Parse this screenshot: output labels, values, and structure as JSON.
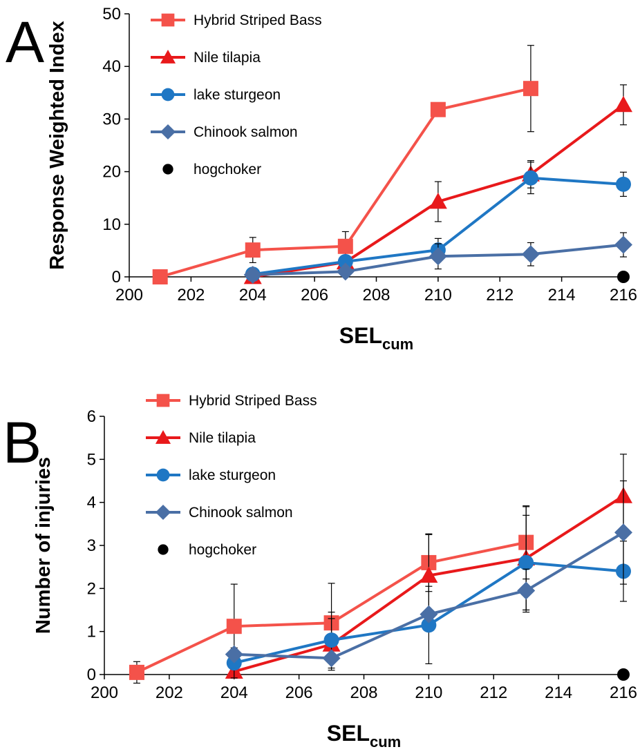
{
  "colors": {
    "hybrid": "#F4524A",
    "tilapia": "#E8191B",
    "sturgeon": "#1F77C4",
    "chinook": "#4A6FA5",
    "hogchoker": "#000000"
  },
  "chart_data": [
    {
      "type": "line",
      "panel": "A",
      "title": "",
      "xlabel_main": "SEL",
      "xlabel_sub": "cum",
      "ylabel": "Response Weighted Index",
      "xlim": [
        200,
        216
      ],
      "ylim": [
        0,
        50
      ],
      "xticks": [
        200,
        202,
        204,
        206,
        208,
        210,
        212,
        214,
        216
      ],
      "yticks": [
        0,
        10,
        20,
        30,
        40,
        50
      ],
      "grid": false,
      "legend_position": "top-left",
      "series": [
        {
          "name": "Hybrid Striped Bass",
          "key": "hybrid",
          "marker": "square",
          "points": [
            {
              "x": 201,
              "y": 0
            },
            {
              "x": 204,
              "y": 5.1,
              "err": 2.4
            },
            {
              "x": 207,
              "y": 5.8,
              "err": 2.8
            },
            {
              "x": 210,
              "y": 31.8
            },
            {
              "x": 213,
              "y": 35.8,
              "err": 8.2
            }
          ]
        },
        {
          "name": "Nile tilapia",
          "key": "tilapia",
          "marker": "triangle",
          "points": [
            {
              "x": 204,
              "y": 0
            },
            {
              "x": 207,
              "y": 2.8
            },
            {
              "x": 210,
              "y": 14.3,
              "err": 3.8
            },
            {
              "x": 213,
              "y": 19.5,
              "err": 2.6
            },
            {
              "x": 216,
              "y": 32.7,
              "err": 3.8
            }
          ]
        },
        {
          "name": "lake sturgeon",
          "key": "sturgeon",
          "marker": "circle",
          "points": [
            {
              "x": 204,
              "y": 0.5
            },
            {
              "x": 207,
              "y": 2.9
            },
            {
              "x": 210,
              "y": 5.1,
              "err": 2.2
            },
            {
              "x": 213,
              "y": 18.8,
              "err": 3.0
            },
            {
              "x": 216,
              "y": 17.6,
              "err": 2.3
            }
          ]
        },
        {
          "name": "Chinook salmon",
          "key": "chinook",
          "marker": "diamond",
          "points": [
            {
              "x": 204,
              "y": 0.4
            },
            {
              "x": 207,
              "y": 1.0
            },
            {
              "x": 210,
              "y": 3.9,
              "err": 2.4
            },
            {
              "x": 213,
              "y": 4.3,
              "err": 2.2
            },
            {
              "x": 216,
              "y": 6.1,
              "err": 2.3
            }
          ]
        },
        {
          "name": "hogchoker",
          "key": "hogchoker",
          "marker": "dot",
          "points": [
            {
              "x": 216,
              "y": 0
            }
          ]
        }
      ]
    },
    {
      "type": "line",
      "panel": "B",
      "title": "",
      "xlabel_main": "SEL",
      "xlabel_sub": "cum",
      "ylabel": "Number of injuries",
      "xlim": [
        200,
        216
      ],
      "ylim": [
        0,
        6
      ],
      "xticks": [
        200,
        202,
        204,
        206,
        208,
        210,
        212,
        214,
        216
      ],
      "yticks": [
        0,
        1,
        2,
        3,
        4,
        5,
        6
      ],
      "grid": false,
      "legend_position": "top-left",
      "series": [
        {
          "name": "Hybrid Striped Bass",
          "key": "hybrid",
          "marker": "square",
          "points": [
            {
              "x": 201,
              "y": 0.05,
              "err": 0.25
            },
            {
              "x": 204,
              "y": 1.12,
              "err": 0.98
            },
            {
              "x": 207,
              "y": 1.2,
              "err": 0.92
            },
            {
              "x": 210,
              "y": 2.6,
              "err": 0.67
            },
            {
              "x": 213,
              "y": 3.07,
              "err": 0.85
            }
          ]
        },
        {
          "name": "Nile tilapia",
          "key": "tilapia",
          "marker": "triangle",
          "points": [
            {
              "x": 204,
              "y": 0.07
            },
            {
              "x": 207,
              "y": 0.7,
              "err": 0.6
            },
            {
              "x": 210,
              "y": 2.3,
              "err": 0.95
            },
            {
              "x": 213,
              "y": 2.7,
              "err": 1.2
            },
            {
              "x": 216,
              "y": 4.15,
              "err": 0.97
            }
          ]
        },
        {
          "name": "lake sturgeon",
          "key": "sturgeon",
          "marker": "circle",
          "points": [
            {
              "x": 204,
              "y": 0.27,
              "err": 0.35
            },
            {
              "x": 207,
              "y": 0.8,
              "err": 0.65
            },
            {
              "x": 210,
              "y": 1.15,
              "err": 0.9
            },
            {
              "x": 213,
              "y": 2.6,
              "err": 1.1
            },
            {
              "x": 216,
              "y": 2.4,
              "err": 0.7
            }
          ]
        },
        {
          "name": "Chinook salmon",
          "key": "chinook",
          "marker": "diamond",
          "points": [
            {
              "x": 204,
              "y": 0.47
            },
            {
              "x": 207,
              "y": 0.38
            },
            {
              "x": 210,
              "y": 1.4
            },
            {
              "x": 213,
              "y": 1.95,
              "err": 0.5
            },
            {
              "x": 216,
              "y": 3.3,
              "err": 1.2
            }
          ]
        },
        {
          "name": "hogchoker",
          "key": "hogchoker",
          "marker": "dot",
          "points": [
            {
              "x": 216,
              "y": 0
            }
          ]
        }
      ]
    }
  ]
}
